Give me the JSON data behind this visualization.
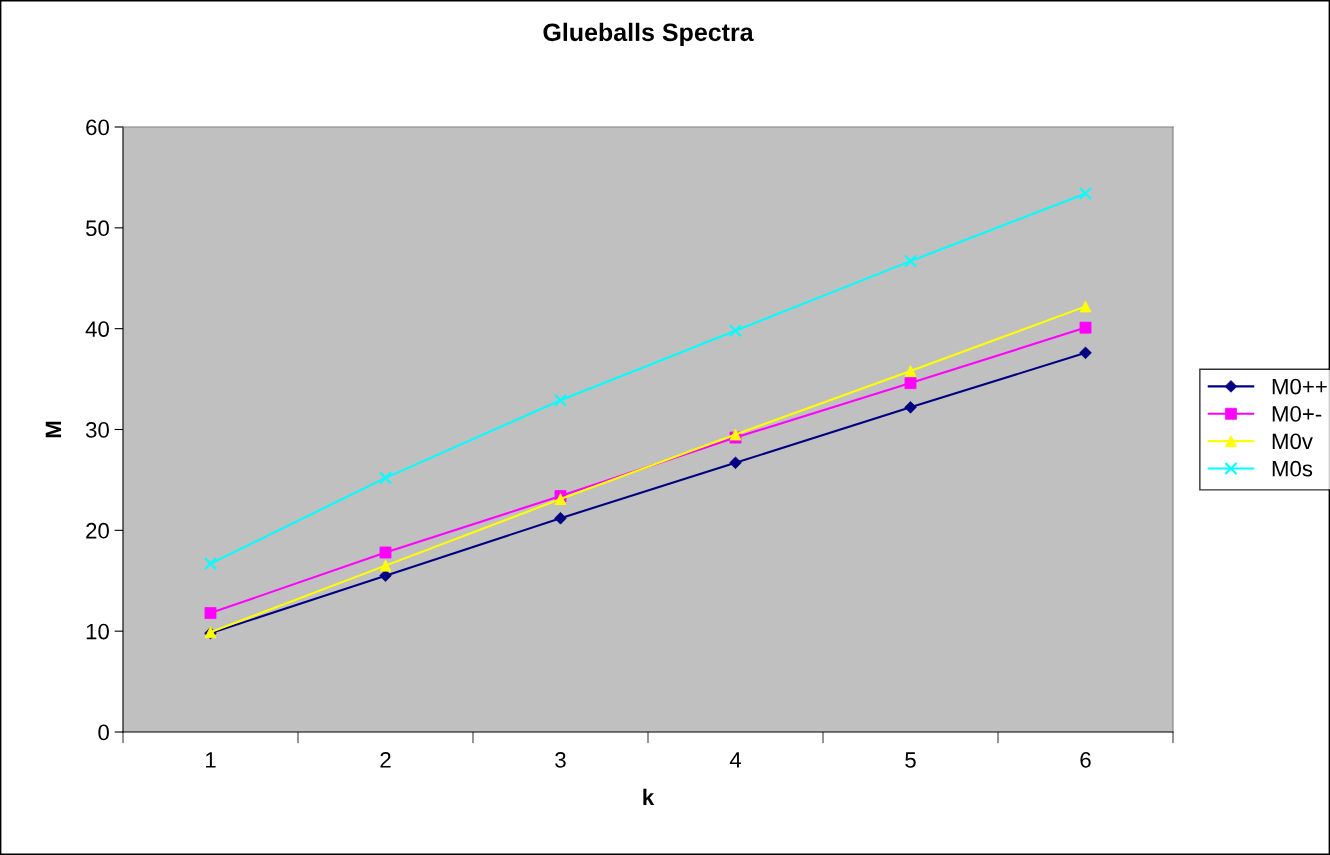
{
  "chart_data": {
    "type": "line",
    "title": "Glueballs Spectra",
    "xlabel": "k",
    "ylabel": "M",
    "categories": [
      "1",
      "2",
      "3",
      "4",
      "5",
      "6"
    ],
    "series": [
      {
        "name": "M0++",
        "color": "#000080",
        "marker": "diamond",
        "values": [
          9.8,
          15.5,
          21.2,
          26.7,
          32.2,
          37.6
        ]
      },
      {
        "name": "M0+-",
        "color": "#ff00ff",
        "marker": "square",
        "values": [
          11.8,
          17.8,
          23.4,
          29.2,
          34.6,
          40.1
        ]
      },
      {
        "name": "M0v",
        "color": "#ffff00",
        "marker": "triangle",
        "values": [
          9.9,
          16.5,
          23.1,
          29.5,
          35.8,
          42.2
        ]
      },
      {
        "name": "M0s",
        "color": "#00ffff",
        "marker": "cross",
        "values": [
          16.7,
          25.2,
          32.9,
          39.8,
          46.7,
          53.4
        ]
      }
    ],
    "ylim": [
      0,
      60
    ],
    "yticks": [
      0,
      10,
      20,
      30,
      40,
      50,
      60
    ],
    "grid": false,
    "legend": "right",
    "line_style": "solid"
  }
}
